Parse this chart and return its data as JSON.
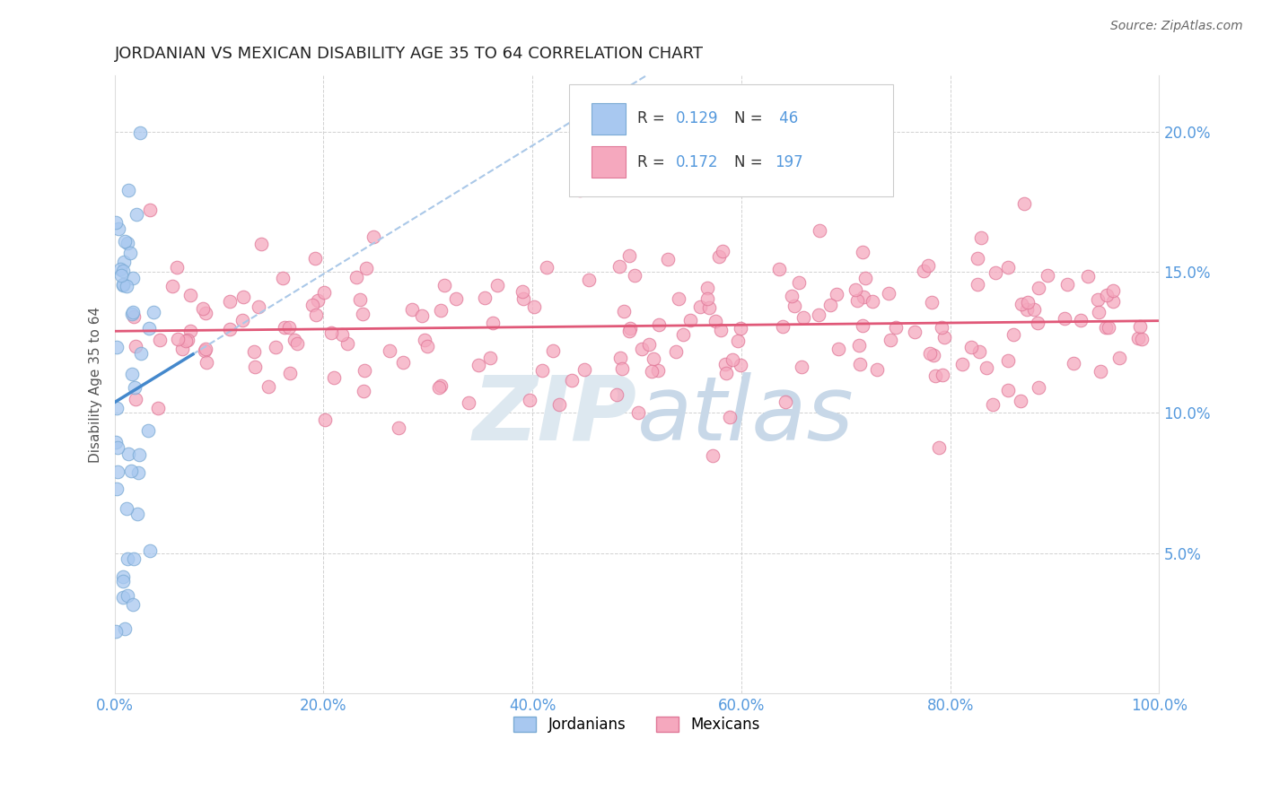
{
  "title": "JORDANIAN VS MEXICAN DISABILITY AGE 35 TO 64 CORRELATION CHART",
  "source": "Source: ZipAtlas.com",
  "ylabel": "Disability Age 35 to 64",
  "r_jordanian": 0.129,
  "n_jordanian": 46,
  "r_mexican": 0.172,
  "n_mexican": 197,
  "jordanian_color": "#a8c8f0",
  "jordanian_edge": "#7aaad4",
  "mexican_color": "#f5a8be",
  "mexican_edge": "#e07898",
  "trend_jordanian_color": "#4488cc",
  "trend_mexican_color": "#e05878",
  "trend_dashed_color": "#aac8e8",
  "background_color": "#ffffff",
  "grid_color": "#cccccc",
  "xlim": [
    0.0,
    1.0
  ],
  "ylim": [
    0.0,
    0.22
  ],
  "xtick_labels": [
    "0.0%",
    "20.0%",
    "40.0%",
    "60.0%",
    "80.0%",
    "100.0%"
  ],
  "xtick_vals": [
    0.0,
    0.2,
    0.4,
    0.6,
    0.8,
    1.0
  ],
  "ytick_labels": [
    "5.0%",
    "10.0%",
    "15.0%",
    "20.0%"
  ],
  "ytick_vals": [
    0.05,
    0.1,
    0.15,
    0.2
  ],
  "tick_color": "#5599dd",
  "watermark_color": "#dde8f0",
  "legend_label_jord": "Jordanians",
  "legend_label_mex": "Mexicans"
}
